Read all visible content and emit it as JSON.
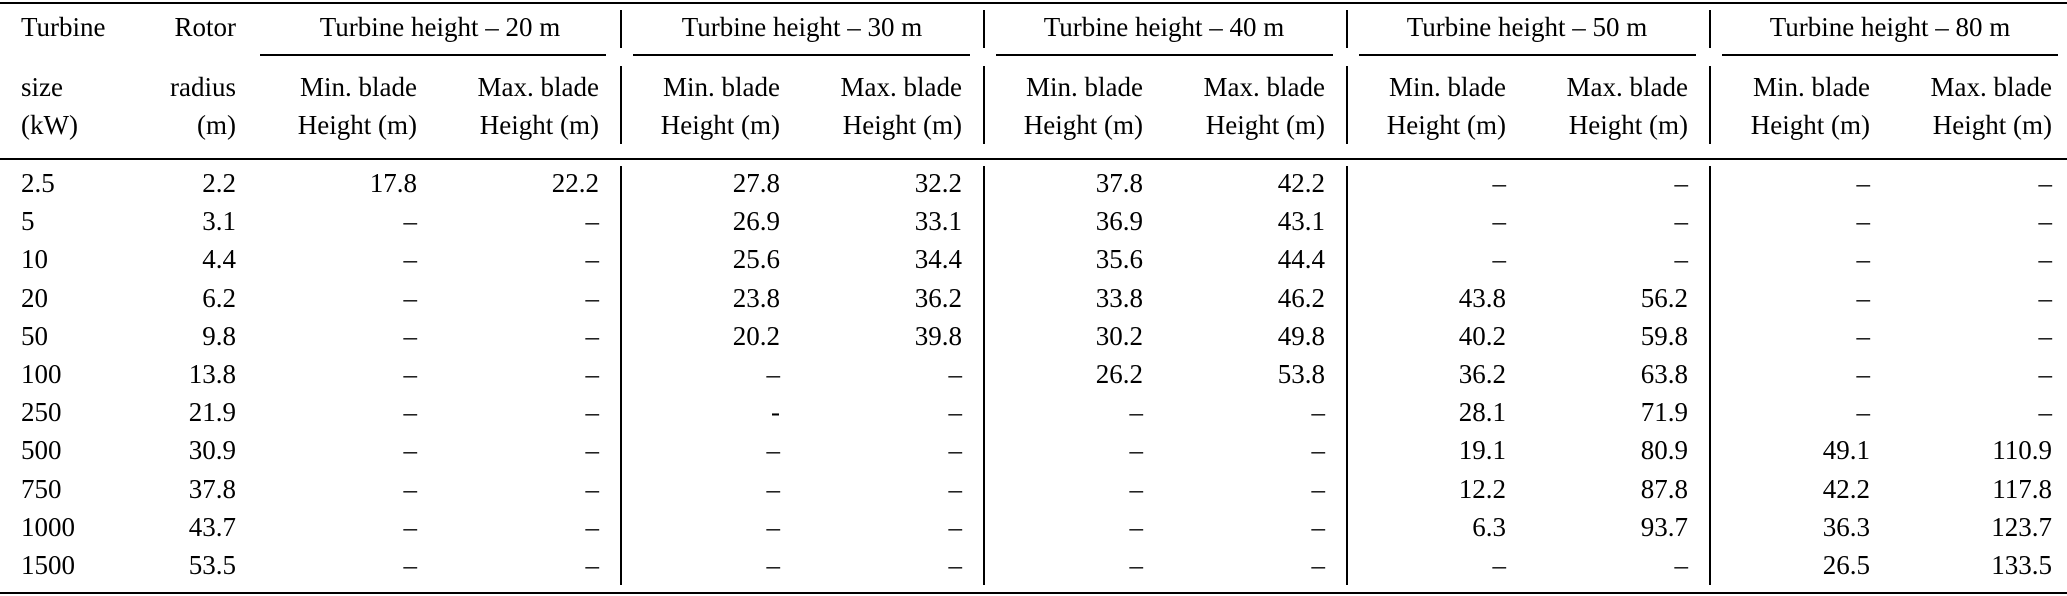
{
  "columns": {
    "size_label": [
      "Turbine",
      "size",
      "(kW)"
    ],
    "radius_label": [
      "Rotor",
      "radius",
      "(m)"
    ],
    "group_headers": [
      "Turbine height – 20 m",
      "Turbine height – 30 m",
      "Turbine height – 40 m",
      "Turbine height – 50 m",
      "Turbine height – 80 m"
    ],
    "min_label": [
      "Min. blade",
      "Height (m)"
    ],
    "max_label": [
      "Max. blade",
      "Height (m)"
    ]
  },
  "rows": [
    [
      "2.5",
      "2.2",
      "17.8",
      "22.2",
      "27.8",
      "32.2",
      "37.8",
      "42.2",
      "–",
      "–",
      "–",
      "–"
    ],
    [
      "5",
      "3.1",
      "–",
      "–",
      "26.9",
      "33.1",
      "36.9",
      "43.1",
      "–",
      "–",
      "–",
      "–"
    ],
    [
      "10",
      "4.4",
      "–",
      "–",
      "25.6",
      "34.4",
      "35.6",
      "44.4",
      "–",
      "–",
      "–",
      "–"
    ],
    [
      "20",
      "6.2",
      "–",
      "–",
      "23.8",
      "36.2",
      "33.8",
      "46.2",
      "43.8",
      "56.2",
      "–",
      "–"
    ],
    [
      "50",
      "9.8",
      "–",
      "–",
      "20.2",
      "39.8",
      "30.2",
      "49.8",
      "40.2",
      "59.8",
      "–",
      "–"
    ],
    [
      "100",
      "13.8",
      "–",
      "–",
      "–",
      "–",
      "26.2",
      "53.8",
      "36.2",
      "63.8",
      "–",
      "–"
    ],
    [
      "250",
      "21.9",
      "–",
      "–",
      "-",
      "–",
      "–",
      "–",
      "28.1",
      "71.9",
      "–",
      "–"
    ],
    [
      "500",
      "30.9",
      "–",
      "–",
      "–",
      "–",
      "–",
      "–",
      "19.1",
      "80.9",
      "49.1",
      "110.9"
    ],
    [
      "750",
      "37.8",
      "–",
      "–",
      "–",
      "–",
      "–",
      "–",
      "12.2",
      "87.8",
      "42.2",
      "117.8"
    ],
    [
      "1000",
      "43.7",
      "–",
      "–",
      "–",
      "–",
      "–",
      "–",
      "6.3",
      "93.7",
      "36.3",
      "123.7"
    ],
    [
      "1500",
      "53.5",
      "–",
      "–",
      "–",
      "–",
      "–",
      "–",
      "–",
      "–",
      "26.5",
      "133.5"
    ]
  ]
}
